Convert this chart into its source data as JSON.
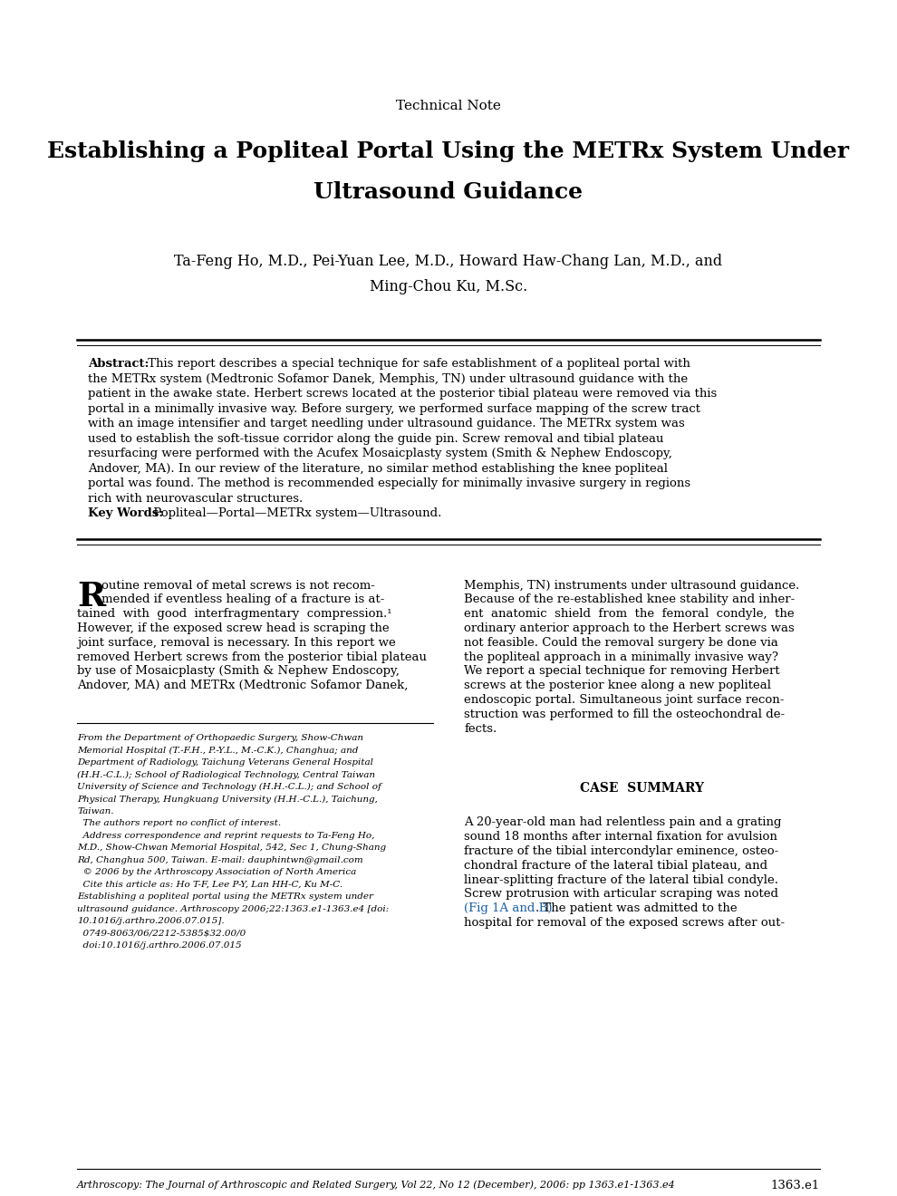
{
  "bg_color": "#ffffff",
  "page_width": 9.9,
  "page_height": 13.2,
  "technical_note": "Technical Note",
  "title_line1": "Establishing a Popliteal Portal Using the METRx System Under",
  "title_line2": "Ultrasound Guidance",
  "authors_line1": "Ta-Feng Ho, M.D., Pei-Yuan Lee, M.D., Howard Haw-Chang Lan, M.D., and",
  "authors_line2": "Ming-Chou Ku, M.Sc.",
  "abstract_body": "This report describes a special technique for safe establishment of a popliteal portal with the METRx system (Medtronic Sofamor Danek, Memphis, TN) under ultrasound guidance with the patient in the awake state. Herbert screws located at the posterior tibial plateau were removed via this portal in a minimally invasive way. Before surgery, we performed surface mapping of the screw tract with an image intensifier and target needling under ultrasound guidance. The METRx system was used to establish the soft-tissue corridor along the guide pin. Screw removal and tibial plateau resurfacing were performed with the Acufex Mosaicplasty system (Smith & Nephew Endoscopy, Andover, MA). In our review of the literature, no similar method establishing the knee popliteal portal was found. The method is recommended especially for minimally invasive surgery in regions rich with neurovascular structures.",
  "keywords_text": "Popliteal—Portal—METRx system—Ultrasound.",
  "body_left_lines": [
    "outine removal of metal screws is not recom-",
    "mended if eventless healing of a fracture is at-",
    "tained  with  good  interfragmentary  compression.¹",
    "However, if the exposed screw head is scraping the",
    "joint surface, removal is necessary. In this report we",
    "removed Herbert screws from the posterior tibial plateau",
    "by use of Mosaicplasty (Smith & Nephew Endoscopy,",
    "Andover, MA) and METRx (Medtronic Sofamor Danek,"
  ],
  "body_right_lines": [
    "Memphis, TN) instruments under ultrasound guidance.",
    "Because of the re-established knee stability and inher-",
    "ent  anatomic  shield  from  the  femoral  condyle,  the",
    "ordinary anterior approach to the Herbert screws was",
    "not feasible. Could the removal surgery be done via",
    "the popliteal approach in a minimally invasive way?",
    "We report a special technique for removing Herbert",
    "screws at the posterior knee along a new popliteal",
    "endoscopic portal. Simultaneous joint surface recon-",
    "struction was performed to fill the osteochondral de-",
    "fects."
  ],
  "footnote_lines": [
    "From the Department of Orthopaedic Surgery, Show-Chwan",
    "Memorial Hospital (T.-F.H., P.-Y.L., M.-C.K.), Changhua; and",
    "Department of Radiology, Taichung Veterans General Hospital",
    "(H.H.-C.L.); School of Radiological Technology, Central Taiwan",
    "University of Science and Technology (H.H.-C.L.); and School of",
    "Physical Therapy, Hungkuang University (H.H.-C.L.), Taichung,",
    "Taiwan.",
    "  The authors report no conflict of interest.",
    "  Address correspondence and reprint requests to Ta-Feng Ho,",
    "M.D., Show-Chwan Memorial Hospital, 542, Sec 1, Chung-Shang",
    "Rd, Changhua 500, Taiwan. E-mail: dauphintwn@gmail.com",
    "  © 2006 by the Arthroscopy Association of North America",
    "  Cite this article as: Ho T-F, Lee P-Y, Lan HH-C, Ku M-C.",
    "Establishing a popliteal portal using the METRx system under",
    "ultrasound guidance. Arthroscopy 2006;22:1363.e1-1363.e4 [doi:",
    "10.1016/j.arthro.2006.07.015].",
    "  0749-8063/06/2212-5385$32.00/0",
    "  doi:10.1016/j.arthro.2006.07.015"
  ],
  "case_summary_title": "CASE  SUMMARY",
  "case_right_lines": [
    "A 20-year-old man had relentless pain and a grating",
    "sound 18 months after internal fixation for avulsion",
    "fracture of the tibial intercondylar eminence, osteo-",
    "chondral fracture of the lateral tibial plateau, and",
    "linear-splitting fracture of the lateral tibial condyle.",
    "Screw protrusion with articular scraping was noted",
    "(Fig 1A and B). The patient was admitted to the",
    "hospital for removal of the exposed screws after out-"
  ],
  "footer_journal": "Arthroscopy: The Journal of Arthroscopic and Related Surgery, Vol 22, No 12 (December), 2006: pp 1363.e1-1363.e4",
  "footer_page": "1363.e1"
}
